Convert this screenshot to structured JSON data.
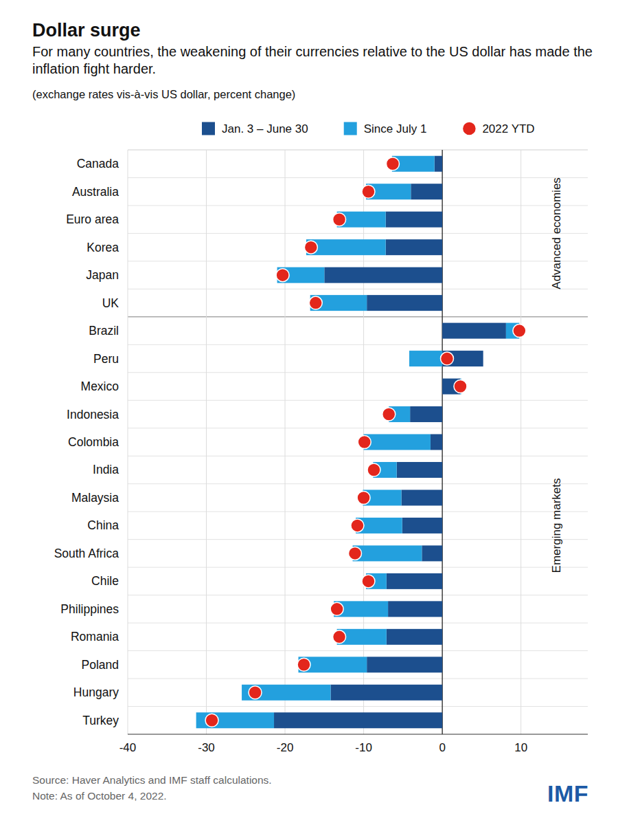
{
  "chart_data": {
    "type": "bar",
    "orientation": "horizontal",
    "stacked": true,
    "grid": true,
    "title": "Dollar surge",
    "subtitle": "For many countries, the weakening of their currencies relative to the US dollar has made the inflation fight harder.",
    "axis_note": "(exchange rates vis-à-vis US dollar, percent change)",
    "source": "Source: Haver Analytics and IMF staff calculations.",
    "note": "Note: As of October 4, 2022.",
    "logo": "IMF",
    "legend": "top",
    "categories": [
      "Canada",
      "Australia",
      "Euro area",
      "Korea",
      "Japan",
      "UK",
      "Brazil",
      "Peru",
      "Mexico",
      "Indonesia",
      "Colombia",
      "India",
      "Malaysia",
      "China",
      "South Africa",
      "Chile",
      "Philippines",
      "Romania",
      "Poland",
      "Hungary",
      "Turkey"
    ],
    "annotations": [
      {
        "text": "Advanced economies",
        "from": "Canada",
        "to": "UK"
      },
      {
        "text": "Emerging markets",
        "from": "Brazil",
        "to": "Turkey"
      }
    ],
    "series": [
      {
        "name": "Jan. 3 – June 30",
        "type": "bar",
        "color": "#1c4f8e",
        "values": [
          -1.0,
          -4.0,
          -7.2,
          -7.2,
          -15.0,
          -9.6,
          8.1,
          5.2,
          2.3,
          -4.1,
          -1.5,
          -5.8,
          -5.2,
          -5.1,
          -2.6,
          -7.1,
          -6.9,
          -7.1,
          -9.6,
          -14.2,
          -21.4
        ]
      },
      {
        "name": "Since July 1",
        "type": "bar",
        "color": "#23a0de",
        "values": [
          -5.4,
          -5.7,
          -6.2,
          -10.1,
          -6.0,
          -7.2,
          1.7,
          -4.2,
          0.1,
          -2.7,
          -8.5,
          -3.0,
          -4.9,
          -5.9,
          -8.8,
          -2.6,
          -6.9,
          -6.3,
          -8.7,
          -11.3,
          -9.9
        ]
      },
      {
        "name": "2022 YTD",
        "type": "scatter",
        "marker": "circle",
        "color": "#e3261c",
        "values": [
          -6.3,
          -9.4,
          -13.1,
          -16.7,
          -20.3,
          -16.1,
          9.8,
          0.6,
          2.3,
          -6.8,
          -9.9,
          -8.7,
          -10.0,
          -10.8,
          -11.1,
          -9.4,
          -13.4,
          -13.1,
          -17.6,
          -23.8,
          -29.3
        ]
      }
    ],
    "xlim": [
      -40,
      18.5
    ],
    "xticks": [
      -40,
      -30,
      -20,
      -10,
      0,
      10
    ]
  }
}
